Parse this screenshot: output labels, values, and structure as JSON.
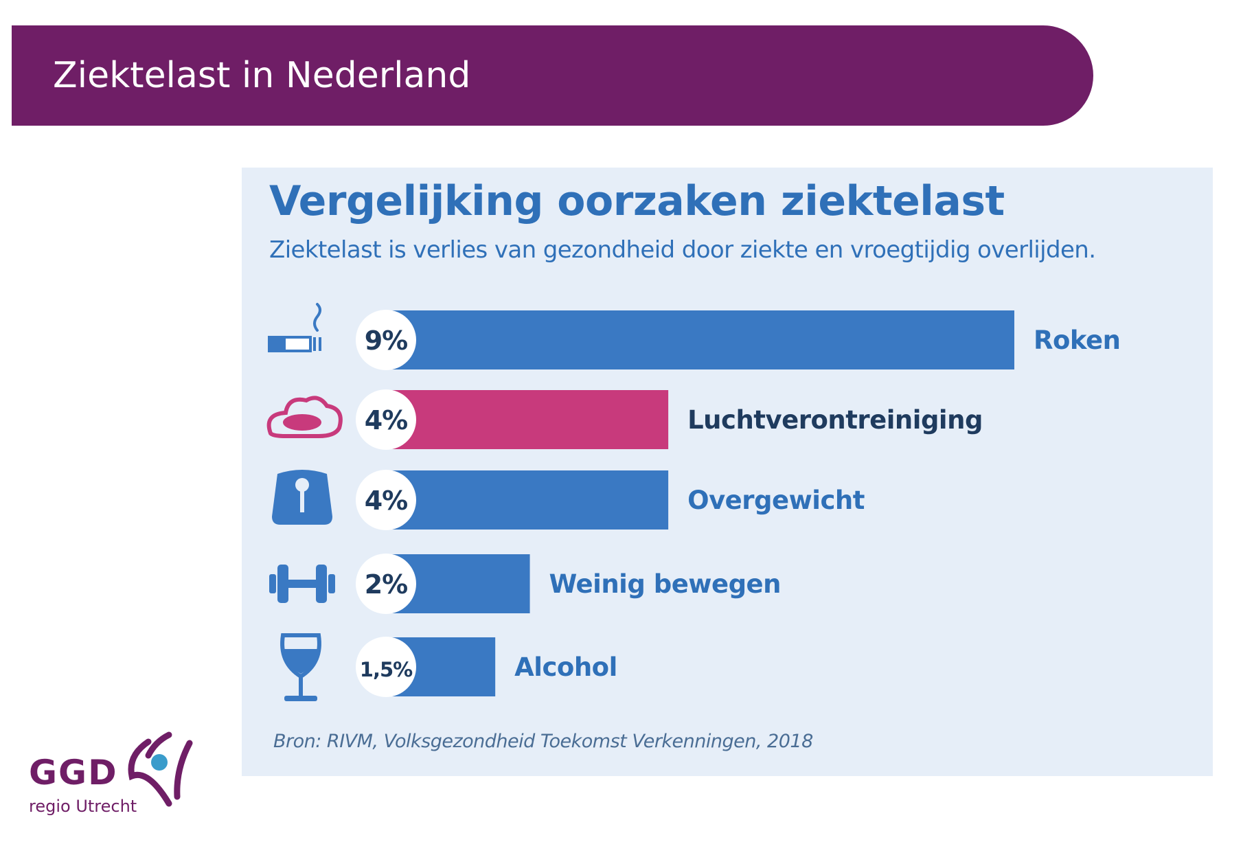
{
  "banner": {
    "title": "Ziektelast in Nederland"
  },
  "chart_data": {
    "type": "bar",
    "orientation": "horizontal",
    "title": "Vergelijking oorzaken ziektelast",
    "subtitle": "Ziektelast is verlies van gezondheid door ziekte en vroegtijdig overlijden.",
    "source": "Bron: RIVM, Volksgezondheid Toekomst Verkenningen, 2018",
    "categories": [
      "Roken",
      "Luchtverontreiniging",
      "Overgewicht",
      "Weinig bewegen",
      "Alcohol"
    ],
    "values": [
      9,
      4,
      4,
      2,
      1.5
    ],
    "value_labels": [
      "9%",
      "4%",
      "4%",
      "2%",
      "1,5%"
    ],
    "icons": [
      "cigarette-icon",
      "cloud-icon",
      "scale-icon",
      "dumbbell-icon",
      "wine-glass-icon"
    ],
    "colors": {
      "default_bar": "#3a79c3",
      "highlight_bar": "#c83a7c",
      "label_blue": "#2f70b8",
      "label_dark": "#1f3b5e"
    },
    "highlight_index": 1,
    "grid": false,
    "legend": "none"
  },
  "logo": {
    "name": "GGD",
    "subtitle": "regio Utrecht"
  }
}
